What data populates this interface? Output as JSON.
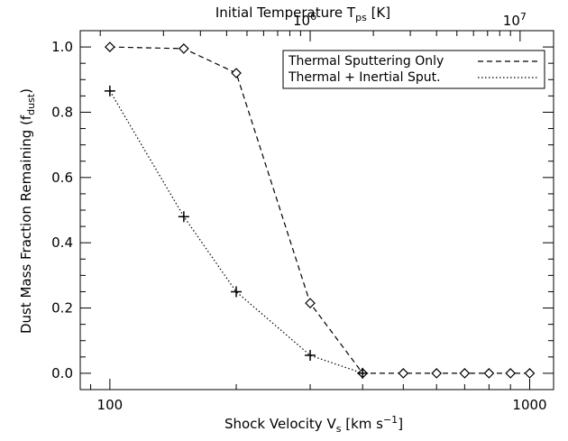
{
  "chart_data": {
    "type": "line",
    "xscale": "log",
    "xlim": [
      85,
      1140
    ],
    "ylim": [
      -0.05,
      1.05
    ],
    "grid": false,
    "legend_position": "top-right",
    "xlabel": {
      "prefix": "Shock Velocity V",
      "sub": "s",
      "unit_open": " [km s",
      "unit_sup": "−1",
      "unit_close": "]"
    },
    "ylabel": {
      "prefix": "Dust Mass Fraction Remaining (f",
      "sub": "dust",
      "suffix": ")"
    },
    "top_axis": {
      "label": {
        "prefix": "Initial Temperature T",
        "sub": "ps",
        "unit": " [K]"
      },
      "major_ticks": [
        {
          "x": 300,
          "base": "10",
          "exp": "6"
        },
        {
          "x": 1000,
          "base": "10",
          "exp": "7"
        }
      ]
    },
    "x_tick_labels": [
      {
        "x": 100,
        "label": "100"
      },
      {
        "x": 1000,
        "label": "1000"
      }
    ],
    "y_ticks": [
      {
        "y": 0.0,
        "label": "0.0"
      },
      {
        "y": 0.2,
        "label": "0.2"
      },
      {
        "y": 0.4,
        "label": "0.4"
      },
      {
        "y": 0.6,
        "label": "0.6"
      },
      {
        "y": 0.8,
        "label": "0.8"
      },
      {
        "y": 1.0,
        "label": "1.0"
      }
    ],
    "series": [
      {
        "name": "Thermal Sputtering Only",
        "style": "dashed",
        "marker": "diamond",
        "x": [
          100,
          150,
          200,
          300,
          400,
          500,
          600,
          700,
          800,
          900,
          1000
        ],
        "y": [
          1.0,
          0.995,
          0.92,
          0.215,
          0.0,
          0.0,
          0.0,
          0.0,
          0.0,
          0.0,
          0.0
        ]
      },
      {
        "name": "Thermal + Inertial Sput.",
        "style": "dotted",
        "marker": "plus",
        "x": [
          100,
          150,
          200,
          300,
          400
        ],
        "y": [
          0.865,
          0.48,
          0.25,
          0.055,
          0.0
        ]
      }
    ]
  }
}
